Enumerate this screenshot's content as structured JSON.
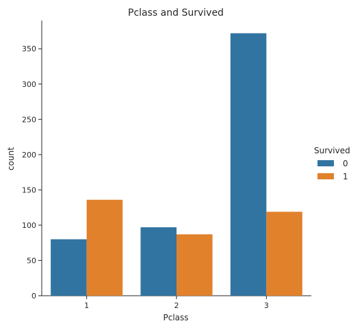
{
  "chart_data": {
    "type": "bar",
    "title": "Pclass and Survived",
    "xlabel": "Pclass",
    "ylabel": "count",
    "categories": [
      "1",
      "2",
      "3"
    ],
    "ylim": [
      0,
      390
    ],
    "yticks": [
      0,
      50,
      100,
      150,
      200,
      250,
      300,
      350
    ],
    "grid": false,
    "legend": {
      "title": "Survived",
      "placement": "right"
    },
    "series": [
      {
        "name": "0",
        "color": "#3274a1",
        "values": [
          80,
          97,
          372
        ]
      },
      {
        "name": "1",
        "color": "#e1812c",
        "values": [
          136,
          87,
          119
        ]
      }
    ]
  }
}
